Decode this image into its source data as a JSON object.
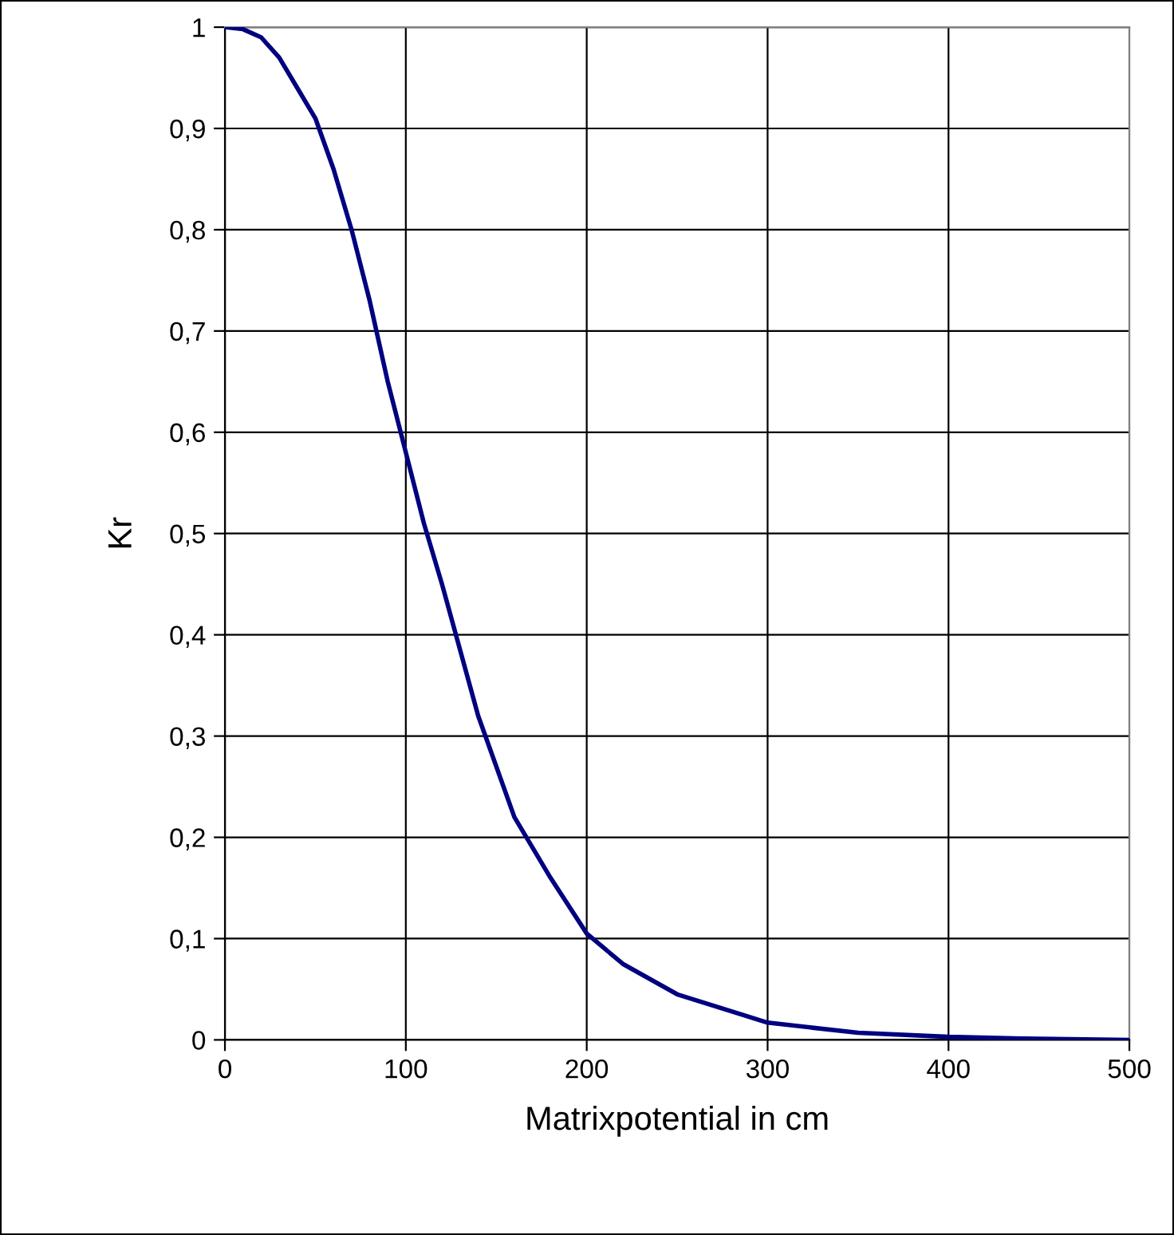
{
  "chart_data": {
    "type": "line",
    "xlabel": "Matrixpotential in cm",
    "ylabel": "Kr",
    "series": [
      {
        "color": "#000080",
        "x": [
          0,
          10,
          20,
          30,
          40,
          50,
          60,
          70,
          80,
          90,
          100,
          110,
          120,
          140,
          160,
          180,
          200,
          220,
          250,
          300,
          350,
          400,
          450,
          500
        ],
        "values": [
          1.0,
          0.998,
          0.99,
          0.97,
          0.94,
          0.91,
          0.86,
          0.8,
          0.73,
          0.65,
          0.58,
          0.51,
          0.45,
          0.32,
          0.22,
          0.16,
          0.105,
          0.075,
          0.045,
          0.017,
          0.007,
          0.003,
          0.001,
          0
        ]
      }
    ],
    "xlim": [
      0,
      500
    ],
    "xticks": [
      0,
      100,
      200,
      300,
      400,
      500
    ],
    "ylim": [
      0,
      1
    ],
    "yticks": [
      0,
      {
        "value": 0.1,
        "label": "0,1"
      },
      {
        "value": 0.2,
        "label": "0,2"
      },
      {
        "value": 0.3,
        "label": "0,3"
      },
      {
        "value": 0.4,
        "label": "0,4"
      },
      {
        "value": 0.5,
        "label": "0,5"
      },
      {
        "value": 0.6,
        "label": "0,6"
      },
      {
        "value": 0.7,
        "label": "0,7"
      },
      {
        "value": 0.8,
        "label": "0,8"
      },
      {
        "value": 0.9,
        "label": "0,9"
      },
      1
    ],
    "grid": true,
    "legend": false,
    "marker": "none",
    "line_style": "solid"
  }
}
